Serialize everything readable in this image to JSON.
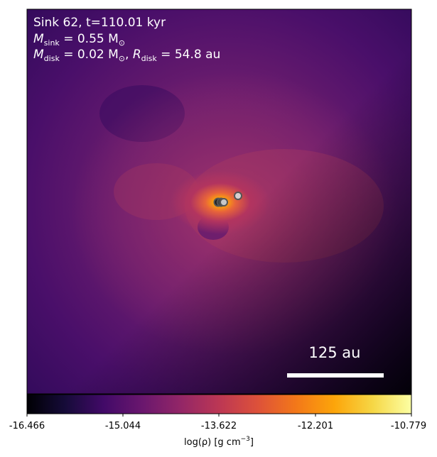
{
  "panel": {
    "title_line": "Sink 62, t=110.01 kyr",
    "m_sink_symbol": "M",
    "m_sink_sub": "sink",
    "m_sink_value": " = 0.55 M",
    "m_disk_symbol": "M",
    "m_disk_sub": "disk",
    "m_disk_value": " = 0.02 M",
    "r_disk_symbol": "R",
    "r_disk_sub": "disk",
    "r_disk_value": " = 54.8 au",
    "scale_bar_label": "125 au"
  },
  "colorbar": {
    "tick_labels": [
      "-16.466",
      "-15.044",
      "-13.622",
      "-12.201",
      "-10.779"
    ],
    "label_prefix": "log(ρ) [g cm",
    "label_exp": "−3",
    "label_suffix": "]",
    "colormap": "inferno"
  },
  "sinks": [
    {
      "id": "sink-a",
      "fill": "#1a1a1a"
    },
    {
      "id": "sink-b",
      "fill": "#444444"
    },
    {
      "id": "sink-c",
      "fill": "#c8c8c8"
    },
    {
      "id": "sink-d",
      "fill": "#d8d0d0"
    }
  ],
  "colors": {
    "inferno_dark": "#000004",
    "inferno_purple": "#420a68",
    "inferno_magenta": "#932667",
    "inferno_orange": "#dd513a",
    "inferno_amber": "#fca50a",
    "inferno_yellow": "#fcffa4"
  }
}
